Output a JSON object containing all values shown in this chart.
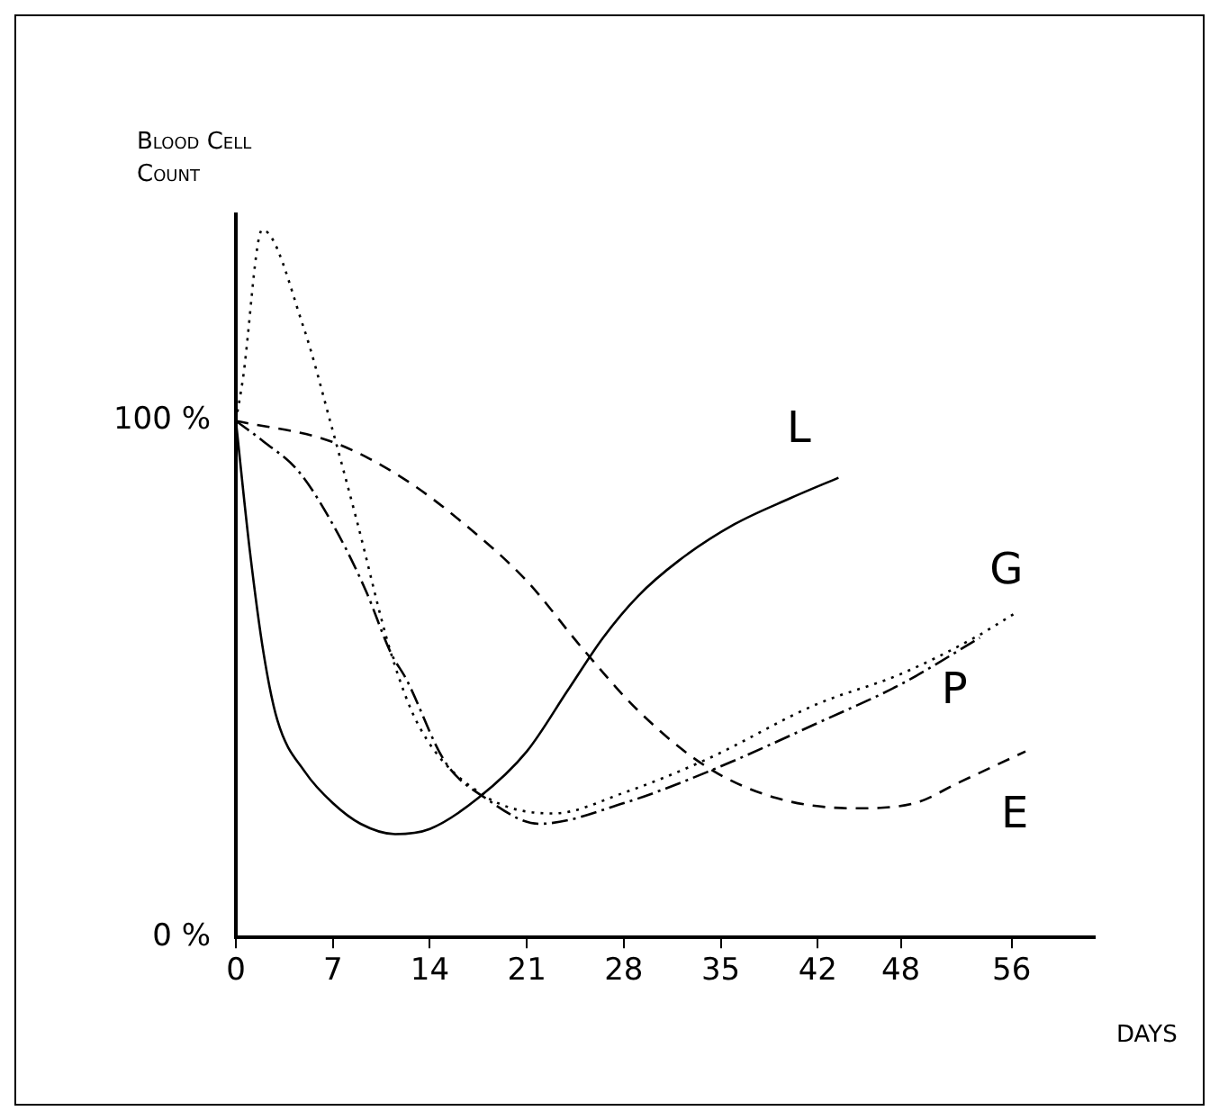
{
  "chart_data": {
    "type": "line",
    "ylabel": "Blood Cell Count",
    "xlabel": "DAYS",
    "xlim": [
      0,
      62
    ],
    "xticks": [
      0,
      7,
      14,
      21,
      28,
      35,
      42,
      48,
      56
    ],
    "ylim": [
      0,
      140
    ],
    "yticks": [
      {
        "value": 0,
        "label": "0 %"
      },
      {
        "value": 100,
        "label": "100 %"
      }
    ],
    "grid": false,
    "legend": false,
    "marker": "none",
    "series": [
      {
        "name": "L",
        "color": "#000000",
        "line_style": "solid",
        "x": [
          0,
          1,
          2,
          3,
          5,
          7,
          9,
          11.5,
          14,
          17.5,
          21,
          24,
          26.5,
          29,
          32,
          36,
          40,
          43.5
        ],
        "values": [
          100,
          75,
          55,
          42,
          32,
          26,
          22,
          20,
          21,
          27,
          36,
          48,
          58,
          66,
          73,
          80,
          85,
          89
        ]
      },
      {
        "name": "G",
        "color": "#000000",
        "line_style": "dotted",
        "x": [
          0,
          0.5,
          1.9,
          4.9,
          6.9,
          8.7,
          11.2,
          13.2,
          17.6,
          22.9,
          28,
          34,
          41.8,
          48,
          53.3,
          56.4
        ],
        "values": [
          100,
          108,
          137,
          118,
          99,
          81,
          55,
          41,
          28,
          24,
          28,
          34.5,
          45,
          51,
          58,
          63
        ]
      },
      {
        "name": "P",
        "color": "#000000",
        "line_style": "dashdot",
        "x": [
          0,
          2,
          4.6,
          7.4,
          9.4,
          11.2,
          12.3,
          15.1,
          18,
          21.9,
          28,
          34,
          42.4,
          48,
          53.7
        ],
        "values": [
          100,
          96,
          90,
          78,
          67,
          55,
          50,
          34,
          27,
          22,
          26,
          32,
          42,
          49,
          58
        ]
      },
      {
        "name": "E",
        "color": "#000000",
        "line_style": "dashed",
        "x": [
          0,
          6.9,
          12,
          16.5,
          21,
          25,
          29,
          34,
          39,
          44.6,
          49,
          52.2,
          57
        ],
        "values": [
          100,
          96,
          89,
          80,
          69,
          56,
          44,
          33,
          27,
          25,
          26,
          30,
          36
        ]
      }
    ]
  }
}
